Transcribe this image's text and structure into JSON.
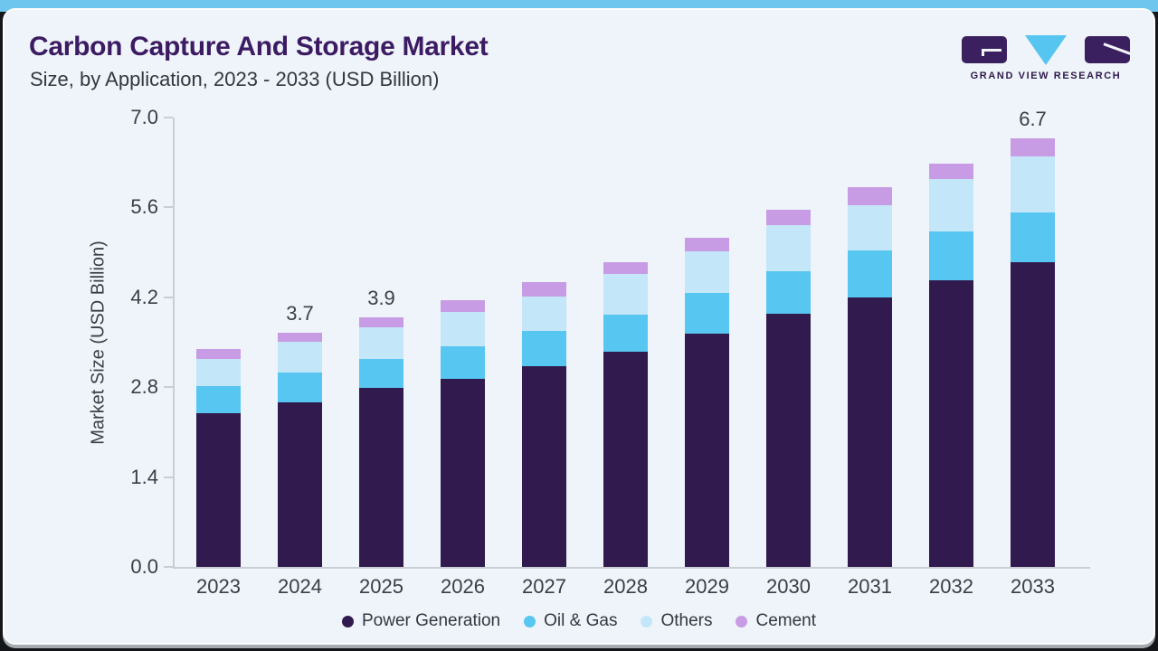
{
  "header": {
    "title": "Carbon Capture And Storage Market",
    "subtitle": "Size, by Application, 2023 - 2033 (USD Billion)"
  },
  "logo": {
    "text": "GRAND VIEW RESEARCH"
  },
  "colors": {
    "top_accent": "#6ec5ee",
    "card_background": "#eef4f9",
    "title_purple": "#3c1b63",
    "axis_line": "#c9ced4",
    "axis_text": "#3a3e45",
    "logo_purple": "#3b2060",
    "logo_triangle_blue": "#56c5f0"
  },
  "chart_data": {
    "type": "bar",
    "stacked": true,
    "title": "Carbon Capture And Storage Market",
    "subtitle": "Size, by Application, 2023 - 2033 (USD Billion)",
    "xlabel": "",
    "ylabel": "Market Size (USD Billion)",
    "ylim": [
      0,
      7.0
    ],
    "yticks": [
      "0.0",
      "1.4",
      "2.8",
      "4.2",
      "5.6",
      "7.0"
    ],
    "grid": false,
    "legend_position": "bottom",
    "categories": [
      "2023",
      "2024",
      "2025",
      "2026",
      "2027",
      "2028",
      "2029",
      "2030",
      "2031",
      "2032",
      "2033"
    ],
    "series": [
      {
        "name": "Power Generation",
        "color": "#311a4d",
        "values": [
          2.4,
          2.57,
          2.79,
          2.93,
          3.13,
          3.35,
          3.63,
          3.95,
          4.2,
          4.47,
          4.75
        ]
      },
      {
        "name": "Oil & Gas",
        "color": "#57c6f0",
        "values": [
          0.42,
          0.46,
          0.45,
          0.51,
          0.54,
          0.58,
          0.64,
          0.65,
          0.73,
          0.75,
          0.77
        ]
      },
      {
        "name": "Others",
        "color": "#c3e7f9",
        "values": [
          0.42,
          0.48,
          0.49,
          0.53,
          0.54,
          0.63,
          0.64,
          0.73,
          0.71,
          0.82,
          0.88
        ]
      },
      {
        "name": "Cement",
        "color": "#c89ce4",
        "values": [
          0.16,
          0.14,
          0.16,
          0.18,
          0.22,
          0.19,
          0.22,
          0.24,
          0.28,
          0.24,
          0.28
        ]
      }
    ],
    "total_labels": [
      "",
      "3.7",
      "3.9",
      "",
      "",
      "",
      "",
      "",
      "",
      "",
      "6.7"
    ]
  }
}
